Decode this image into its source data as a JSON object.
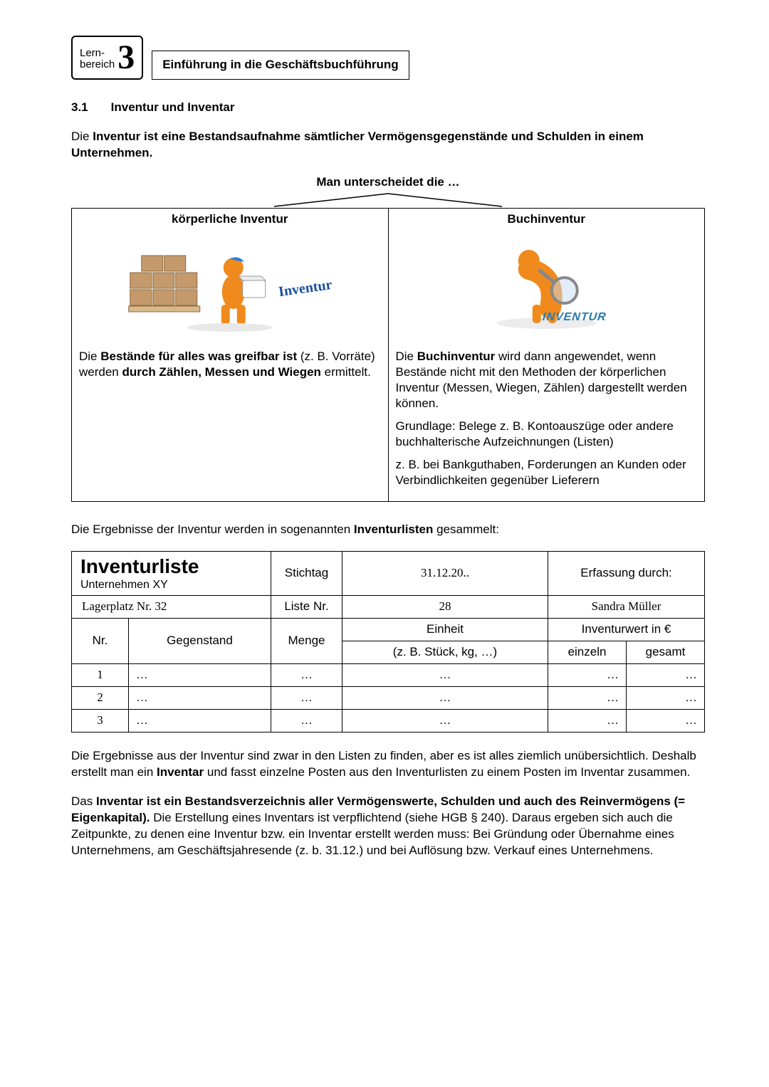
{
  "header": {
    "lernbereich_label": "Lern-\nbereich",
    "lernbereich_number": "3",
    "chapter_title": "Einführung in die Geschäftsbuchführung"
  },
  "section": {
    "number": "3.1",
    "title": "Inventur und Inventar"
  },
  "intro_sentence_prefix": "Die ",
  "intro_sentence_bold": "Inventur ist eine Bestandsaufnahme sämtlicher Vermögensgegenstände und Schulden in einem Unternehmen.",
  "distinction_lead": "Man unterscheidet die …",
  "types": {
    "left": {
      "heading": "körperliche Inventur",
      "img_caption": "Inventur",
      "text_parts": [
        {
          "t": "Die ",
          "b": false
        },
        {
          "t": "Bestände für alles was greifbar ist",
          "b": true
        },
        {
          "t": " (z. B. Vorräte) werden ",
          "b": false
        },
        {
          "t": "durch Zählen, Messen und Wiegen",
          "b": true
        },
        {
          "t": " ermittelt.",
          "b": false
        }
      ]
    },
    "right": {
      "heading": "Buchinventur",
      "img_caption": "INVENTUR",
      "p1_parts": [
        {
          "t": "Die ",
          "b": false
        },
        {
          "t": "Buchinventur",
          "b": true
        },
        {
          "t": " wird dann angewendet, wenn Bestände nicht mit den Methoden der körperlichen Inventur (Messen, Wiegen, Zählen)  dargestellt werden können.",
          "b": false
        }
      ],
      "p2": "Grundlage: Belege z. B. Kontoauszüge oder andere buchhalterische Aufzeichnungen (Listen)",
      "p3": "z. B. bei Bankguthaben, Forderungen an Kunden oder Verbindlichkeiten gegenüber Lieferern"
    }
  },
  "liste_intro_parts": [
    {
      "t": "Die Ergebnisse der Inventur werden in sogenannten ",
      "b": false
    },
    {
      "t": "Inventurlisten",
      "b": true
    },
    {
      "t": " gesammelt:",
      "b": false
    }
  ],
  "liste": {
    "title": "Inventurliste",
    "company": "Unternehmen XY",
    "stichtag_label": "Stichtag",
    "stichtag_value": "31.12.20..",
    "erfassung_label": "Erfassung durch:",
    "lagerplatz": "Lagerplatz Nr. 32",
    "liste_nr_label": "Liste Nr.",
    "liste_nr_value": "28",
    "erfasser": "Sandra Müller",
    "cols": {
      "nr": "Nr.",
      "gegenstand": "Gegenstand",
      "menge": "Menge",
      "einheit": "Einheit",
      "einheit_sub": "(z. B. Stück, kg, …)",
      "wert": "Inventurwert in €",
      "einzeln": "einzeln",
      "gesamt": "gesamt"
    },
    "rows": [
      {
        "nr": "1",
        "g": "…",
        "m": "…",
        "e": "…",
        "ein": "…",
        "ges": "…"
      },
      {
        "nr": "2",
        "g": "…",
        "m": "…",
        "e": "…",
        "ein": "…",
        "ges": "…"
      },
      {
        "nr": "3",
        "g": "…",
        "m": "…",
        "e": "…",
        "ein": "…",
        "ges": "…"
      }
    ]
  },
  "outro1_parts": [
    {
      "t": "Die Ergebnisse aus der Inventur sind zwar in den Listen zu finden, aber es ist alles ziemlich unübersichtlich. Deshalb erstellt man ein ",
      "b": false
    },
    {
      "t": "Inventar",
      "b": true
    },
    {
      "t": " und fasst einzelne Posten aus den Inventurlisten zu einem Posten im Inventar zusammen.",
      "b": false
    }
  ],
  "outro2_parts": [
    {
      "t": "Das ",
      "b": false
    },
    {
      "t": "Inventar ist ein Bestandsverzeichnis aller Vermögenswerte, Schulden und auch des Reinvermögens (= Eigenkapital).",
      "b": true
    },
    {
      "t": " Die Erstellung eines Inventars ist verpflichtend (siehe HGB § 240). Daraus ergeben sich auch die Zeitpunkte, zu denen eine Inventur bzw. ein Inventar erstellt werden muss: Bei Gründung oder Übernahme eines Unternehmens, am Geschäftsjahresende (z. b. 31.12.) und bei Auflösung bzw. Verkauf eines Unternehmens.",
      "b": false
    }
  ],
  "colors": {
    "orange": "#f08a1d",
    "box_brown": "#b88a5a",
    "blue": "#1a4fa3"
  }
}
